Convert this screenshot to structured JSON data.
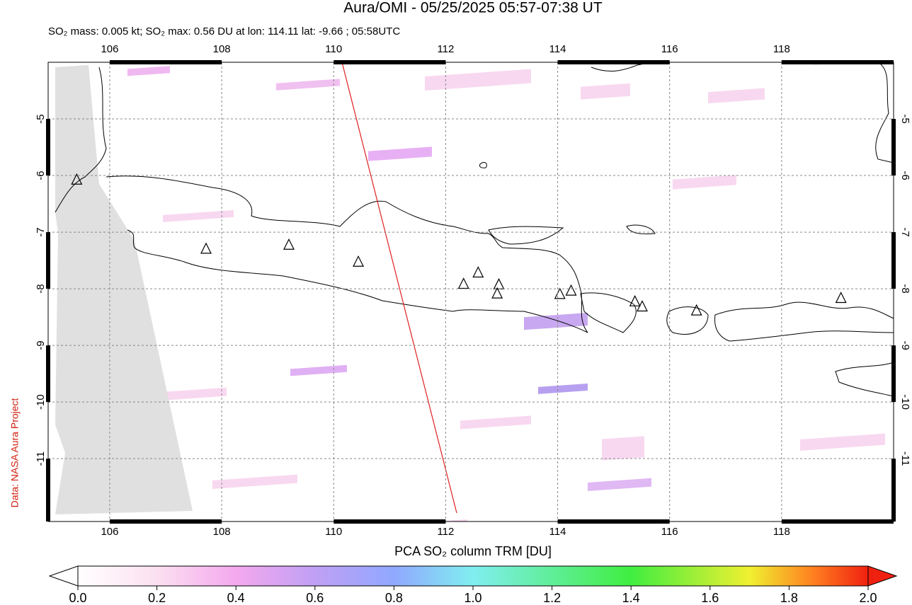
{
  "title": "Aura/OMI - 05/25/2025 05:57-07:38 UT",
  "subtitle": "SO₂ mass: 0.005 kt; SO₂ max: 0.56 DU at lon: 114.11 lat: -9.66 ; 05:58UTC",
  "credit": "Data: NASA Aura Project",
  "map": {
    "xlim": [
      104.9,
      120
    ],
    "ylim": [
      -12.11,
      -4
    ],
    "xticks": [
      106,
      108,
      110,
      112,
      114,
      116,
      118
    ],
    "yticks": [
      -5,
      -6,
      -7,
      -8,
      -9,
      -10,
      -11
    ],
    "volcanoes": [
      [
        105.41,
        -6.09
      ],
      [
        107.72,
        -7.31
      ],
      [
        109.2,
        -7.24
      ],
      [
        110.44,
        -7.54
      ],
      [
        112.32,
        -7.93
      ],
      [
        112.58,
        -7.73
      ],
      [
        112.95,
        -7.94
      ],
      [
        112.92,
        -8.1
      ],
      [
        114.04,
        -8.11
      ],
      [
        114.24,
        -8.05
      ],
      [
        115.38,
        -8.24
      ],
      [
        115.51,
        -8.33
      ],
      [
        116.48,
        -8.4
      ],
      [
        119.06,
        -8.18
      ]
    ]
  },
  "colorbar": {
    "label": "PCA SO₂ column TRM [DU]",
    "range": [
      0,
      2
    ],
    "ticks": [
      {
        "value": 0,
        "label": "0.0"
      },
      {
        "value": 0.2,
        "label": "0.2"
      },
      {
        "value": 0.4,
        "label": "0.4"
      },
      {
        "value": 0.6,
        "label": "0.6"
      },
      {
        "value": 0.8,
        "label": "0.8"
      },
      {
        "value": 1,
        "label": "1.0"
      },
      {
        "value": 1.2,
        "label": "1.2"
      },
      {
        "value": 1.4,
        "label": "1.4"
      },
      {
        "value": 1.6,
        "label": "1.6"
      },
      {
        "value": 1.8,
        "label": "1.8"
      },
      {
        "value": 2,
        "label": "2.0"
      }
    ]
  }
}
